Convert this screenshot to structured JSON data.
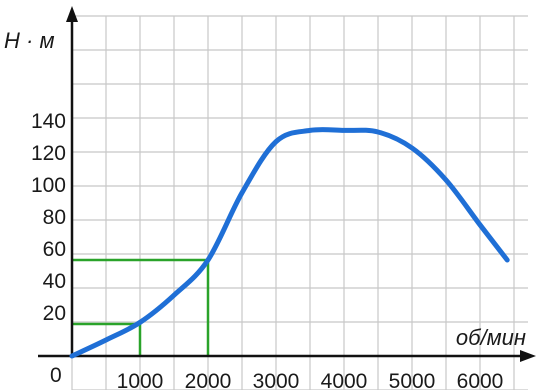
{
  "chart_data": {
    "type": "line",
    "ylabel": "Н · м",
    "xlabel": "об/мин",
    "origin_label": "0",
    "x_ticks": [
      1000,
      2000,
      3000,
      4000,
      5000,
      6000
    ],
    "y_ticks": [
      20,
      40,
      60,
      80,
      100,
      120,
      140
    ],
    "xlim": [
      0,
      6500
    ],
    "ylim": [
      0,
      200
    ],
    "grid": true,
    "colors": {
      "curve": "#1f6fd6",
      "helper": "#2aa32a",
      "grid": "#c8c8c8",
      "axis": "#111111"
    },
    "series": [
      {
        "x": [
          0,
          500,
          1000,
          1500,
          2000,
          2500,
          3000,
          3500,
          4000,
          4500,
          5000,
          5500,
          6000,
          6400
        ],
        "y": [
          0,
          10,
          21,
          38,
          60,
          102,
          134,
          141,
          141,
          140,
          130,
          110,
          82,
          60
        ]
      }
    ],
    "helper_lines": [
      {
        "x": 1000,
        "y": 20
      },
      {
        "x": 2000,
        "y": 60
      }
    ]
  }
}
